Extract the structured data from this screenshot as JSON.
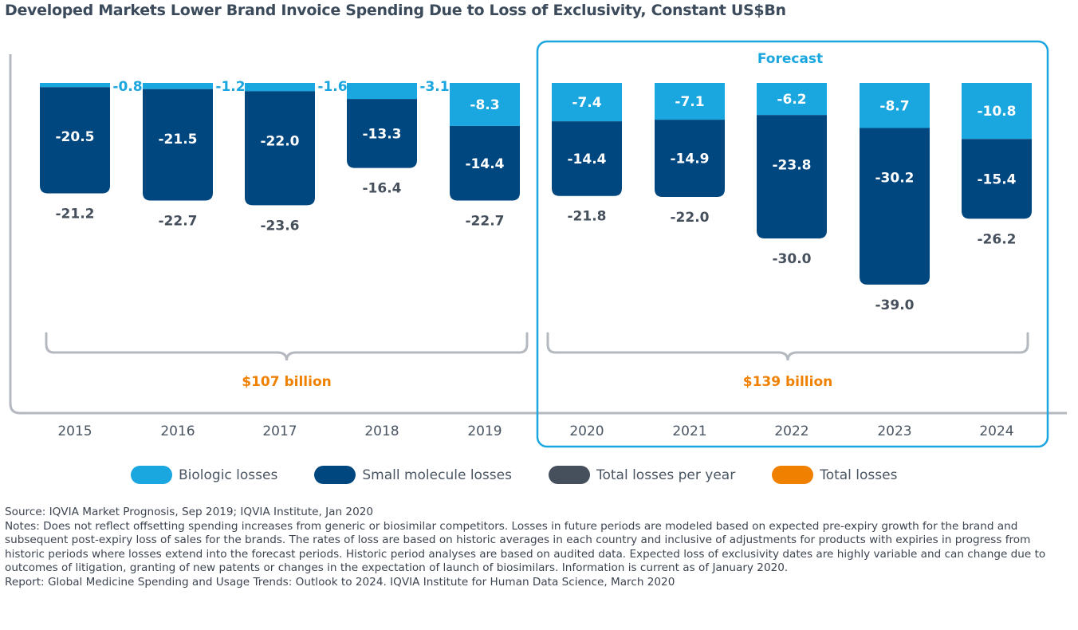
{
  "title": "Developed Markets Lower Brand Invoice Spending Due to Loss of Exclusivity, Constant US$Bn",
  "colors": {
    "biologic": "#1aa6df",
    "small_molecule": "#00467f",
    "total_per_year": "#46505c",
    "total_losses": "#f08100",
    "forecast_box": "#1aa6df",
    "bracket": "#b4b9bf",
    "axis": "#b4b9bf"
  },
  "chart_data": {
    "type": "bar",
    "stacked": true,
    "orientation": "negative-down",
    "title": "Developed Markets Lower Brand Invoice Spending Due to Loss of Exclusivity, Constant US$Bn",
    "categories": [
      "2015",
      "2016",
      "2017",
      "2018",
      "2019",
      "2020",
      "2021",
      "2022",
      "2023",
      "2024"
    ],
    "series": [
      {
        "name": "Biologic losses",
        "values": [
          -0.8,
          -1.2,
          -1.6,
          -3.1,
          -8.3,
          -7.4,
          -7.1,
          -6.2,
          -8.7,
          -10.8
        ],
        "labels": [
          "-0.8",
          "-1.2",
          "-1.6",
          "-3.1",
          "-8.3",
          "-7.4",
          "-7.1",
          "-6.2",
          "-8.7",
          "-10.8"
        ]
      },
      {
        "name": "Small molecule losses",
        "values": [
          -20.5,
          -21.5,
          -22.0,
          -13.3,
          -14.4,
          -14.4,
          -14.9,
          -23.8,
          -30.2,
          -15.4
        ],
        "labels": [
          "-20.5",
          "-21.5",
          "-22.0",
          "-13.3",
          "-14.4",
          "-14.4",
          "-14.9",
          "-23.8",
          "-30.2",
          "-15.4"
        ]
      }
    ],
    "totals": {
      "name": "Total losses per year",
      "values": [
        -21.2,
        -22.7,
        -23.6,
        -16.4,
        -22.7,
        -21.8,
        -22.0,
        -30.0,
        -39.0,
        -26.2
      ],
      "labels": [
        "-21.2",
        "-22.7",
        "-23.6",
        "-16.4",
        "-22.7",
        "-21.8",
        "-22.0",
        "-30.0",
        "-39.0",
        "-26.2"
      ]
    },
    "period_totals": [
      {
        "name": "Total losses",
        "label": "$107 billion",
        "from": "2015",
        "to": "2019"
      },
      {
        "name": "Total losses",
        "label": "$139 billion",
        "from": "2020",
        "to": "2024"
      }
    ],
    "forecast": {
      "label": "Forecast",
      "from": "2020",
      "to": "2024"
    },
    "ylim": [
      -42,
      0
    ],
    "xlabel": "",
    "ylabel": ""
  },
  "legend": [
    {
      "label": "Biologic losses",
      "color": "#1aa6df"
    },
    {
      "label": "Small molecule losses",
      "color": "#00467f"
    },
    {
      "label": "Total losses per year",
      "color": "#46505c"
    },
    {
      "label": "Total losses",
      "color": "#f08100"
    }
  ],
  "notes": {
    "source": "Source: IQVIA Market Prognosis, Sep 2019; IQVIA Institute, Jan 2020",
    "notes": "Notes: Does not reflect offsetting spending increases from generic or biosimilar competitors. Losses in future periods are modeled based on expected pre-expiry growth for the brand and subsequent post-expiry loss of sales for the brands. The rates of loss are based on historic averages in each country and inclusive of adjustments for products with expiries in progress from historic periods where losses extend into the forecast periods. Historic period analyses are based on audited data. Expected loss of exclusivity dates are highly variable and can change due to outcomes of litigation, granting of new patents or changes in the expectation of launch of biosimilars. Information is current as of January 2020.",
    "report": "Report: Global Medicine Spending and Usage Trends: Outlook to 2024. IQVIA Institute for Human Data Science, March 2020"
  }
}
